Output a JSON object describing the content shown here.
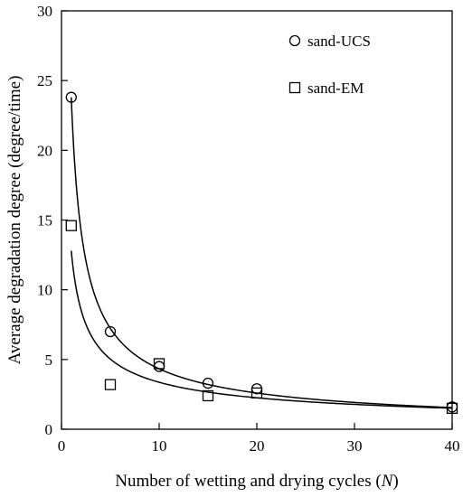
{
  "chart_data": {
    "type": "scatter",
    "xlabel_prefix": "Number of wetting and drying cycles (",
    "xlabel_var": "N",
    "xlabel_suffix": ")",
    "ylabel": "Average degradation degree (degree/time)",
    "xlim": [
      0,
      40
    ],
    "ylim": [
      0,
      30
    ],
    "x_ticks": [
      0,
      10,
      20,
      30,
      40
    ],
    "y_ticks": [
      0,
      5,
      10,
      15,
      20,
      25,
      30
    ],
    "grid": false,
    "legend_position": "top-right",
    "series": [
      {
        "name": "sand-UCS",
        "marker": "circle",
        "x": [
          1,
          5,
          10,
          15,
          20,
          40
        ],
        "y": [
          23.8,
          7.0,
          4.5,
          3.3,
          2.9,
          1.6
        ],
        "fit": {
          "a": 23.8,
          "b": -0.74,
          "x_range": [
            1,
            40
          ]
        }
      },
      {
        "name": "sand-EM",
        "marker": "square",
        "x": [
          1,
          5,
          10,
          15,
          20,
          40
        ],
        "y": [
          14.6,
          3.2,
          4.7,
          2.4,
          2.6,
          1.5
        ],
        "fit": {
          "a": 12.8,
          "b": -0.58,
          "x_range": [
            1,
            40
          ]
        }
      }
    ]
  }
}
